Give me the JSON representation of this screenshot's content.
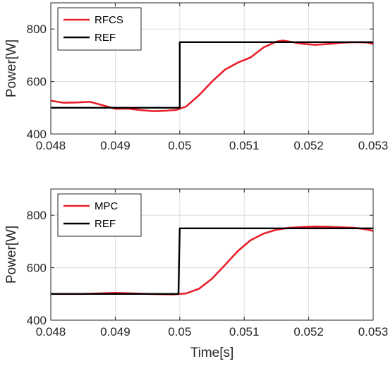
{
  "chart_data": [
    {
      "type": "line",
      "title": "",
      "xlabel": "",
      "ylabel": "Power[W]",
      "xlim": [
        0.048,
        0.053
      ],
      "ylim": [
        400,
        900
      ],
      "xticks": [
        0.048,
        0.049,
        0.05,
        0.051,
        0.052,
        0.053
      ],
      "xtick_labels": [
        "0.048",
        "0.049",
        "0.05",
        "0.051",
        "0.052",
        "0.053"
      ],
      "yticks": [
        400,
        600,
        800
      ],
      "ytick_labels": [
        "400",
        "600",
        "800"
      ],
      "grid": true,
      "legend_position": "top-left",
      "series": [
        {
          "name": "RFCS",
          "color": "#e8202a",
          "x": [
            0.048,
            0.0482,
            0.0484,
            0.0486,
            0.0488,
            0.049,
            0.0492,
            0.0494,
            0.0496,
            0.0498,
            0.04995,
            0.0501,
            0.0503,
            0.0505,
            0.0507,
            0.0509,
            0.0511,
            0.0513,
            0.0515,
            0.0516,
            0.0517,
            0.0519,
            0.0521,
            0.0523,
            0.0525,
            0.0527,
            0.0529,
            0.053
          ],
          "y": [
            527,
            519,
            520,
            523,
            510,
            496,
            497,
            491,
            487,
            489,
            492,
            505,
            548,
            600,
            645,
            672,
            692,
            730,
            752,
            756,
            752,
            744,
            740,
            743,
            748,
            750,
            749,
            743
          ]
        },
        {
          "name": "REF",
          "color": "#000000",
          "x": [
            0.048,
            0.05,
            0.05,
            0.053
          ],
          "y": [
            500,
            500,
            750,
            750
          ]
        }
      ]
    },
    {
      "type": "line",
      "title": "",
      "xlabel": "Time[s]",
      "ylabel": "Power[W]",
      "xlim": [
        0.048,
        0.053
      ],
      "ylim": [
        400,
        900
      ],
      "xticks": [
        0.048,
        0.049,
        0.05,
        0.051,
        0.052,
        0.053
      ],
      "xtick_labels": [
        "0.048",
        "0.049",
        "0.05",
        "0.051",
        "0.052",
        "0.053"
      ],
      "yticks": [
        400,
        600,
        800
      ],
      "ytick_labels": [
        "400",
        "600",
        "800"
      ],
      "grid": true,
      "legend_position": "top-left",
      "series": [
        {
          "name": "MPC",
          "color": "#e8202a",
          "x": [
            0.048,
            0.0485,
            0.049,
            0.0495,
            0.0499,
            0.0501,
            0.0503,
            0.0505,
            0.0507,
            0.0509,
            0.0511,
            0.0513,
            0.0515,
            0.0517,
            0.0519,
            0.0521,
            0.0523,
            0.0525,
            0.0527,
            0.0529,
            0.053
          ],
          "y": [
            500,
            500,
            504,
            500,
            498,
            502,
            520,
            558,
            610,
            663,
            705,
            730,
            745,
            752,
            755,
            757,
            756,
            754,
            752,
            746,
            740
          ]
        },
        {
          "name": "REF",
          "color": "#000000",
          "x": [
            0.048,
            0.04998,
            0.05,
            0.053
          ],
          "y": [
            500,
            500,
            750,
            750
          ]
        }
      ]
    }
  ]
}
